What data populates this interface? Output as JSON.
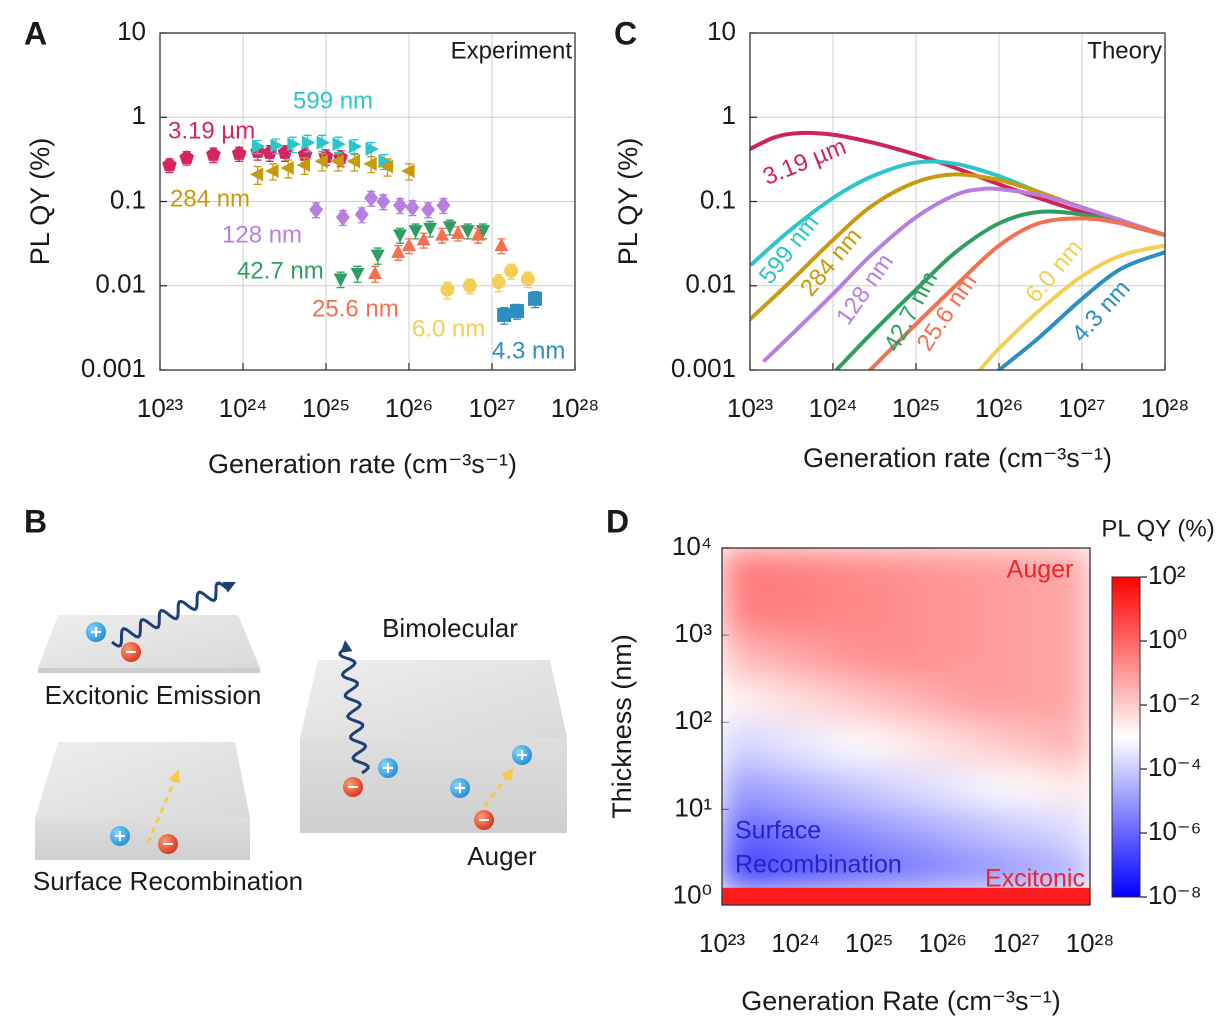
{
  "chart_data": [
    {
      "type": "scatter",
      "panel": "A",
      "annotation": "Experiment",
      "y_label": "PL QY (%)",
      "x_label": "Generation rate (cm⁻³s⁻¹)",
      "log_x": true,
      "log_y": true,
      "grid": true,
      "xlim": [
        1e+23,
        1e+28
      ],
      "ylim": [
        0.001,
        10
      ],
      "xticks": [
        {
          "value": 1e+23,
          "label": "10²³"
        },
        {
          "value": 1e+24,
          "label": "10²⁴"
        },
        {
          "value": 1e+25,
          "label": "10²⁵"
        },
        {
          "value": 1e+26,
          "label": "10²⁶"
        },
        {
          "value": 1e+27,
          "label": "10²⁷"
        },
        {
          "value": 1e+28,
          "label": "10²⁸"
        }
      ],
      "yticks": [
        0.001,
        0.01,
        0.1,
        1,
        10
      ],
      "series": [
        {
          "name": "3.19 µm",
          "color": "#d6245e",
          "marker": "pentagon",
          "x": [
            1.3e+23,
            2.1e+23,
            4.4e+23,
            9e+23,
            1.5e+24,
            2.1e+24,
            3.2e+24,
            5.6e+24,
            1e+25,
            1.5e+25
          ],
          "values": [
            0.27,
            0.33,
            0.36,
            0.37,
            0.39,
            0.38,
            0.38,
            0.36,
            0.34,
            0.33
          ],
          "errors": [
            0.05,
            0.06,
            0.07,
            0.07,
            0.08,
            0.08,
            0.08,
            0.07,
            0.07,
            0.07
          ]
        },
        {
          "name": "599 nm",
          "color": "#2cc5c9",
          "marker": "triangle-right",
          "x": [
            1.5e+24,
            2.5e+24,
            4e+24,
            6e+24,
            9e+24,
            1.4e+25,
            2.2e+25,
            3.5e+25,
            5e+25
          ],
          "values": [
            0.45,
            0.46,
            0.48,
            0.5,
            0.5,
            0.48,
            0.45,
            0.42,
            0.3
          ],
          "errors": [
            0.08,
            0.09,
            0.1,
            0.11,
            0.11,
            0.1,
            0.09,
            0.08,
            0.06
          ]
        },
        {
          "name": "284 nm",
          "color": "#c99a0e",
          "marker": "triangle-left",
          "x": [
            1.5e+24,
            2.3e+24,
            3.5e+24,
            5.5e+24,
            9e+24,
            1.4e+25,
            2.2e+25,
            3.5e+25,
            5.5e+25,
            1e+26
          ],
          "values": [
            0.21,
            0.23,
            0.25,
            0.27,
            0.3,
            0.3,
            0.3,
            0.28,
            0.26,
            0.23
          ],
          "errors": [
            0.05,
            0.05,
            0.06,
            0.06,
            0.07,
            0.07,
            0.07,
            0.06,
            0.06,
            0.05
          ]
        },
        {
          "name": "128 nm",
          "color": "#b77fe0",
          "marker": "diamond",
          "x": [
            7.6e+24,
            1.6e+25,
            2.7e+25,
            3.5e+25,
            4.9e+25,
            7.8e+25,
            1.1e+26,
            1.7e+26,
            2.6e+26
          ],
          "values": [
            0.08,
            0.065,
            0.07,
            0.11,
            0.1,
            0.09,
            0.085,
            0.08,
            0.09
          ],
          "errors": [
            0.016,
            0.013,
            0.014,
            0.022,
            0.02,
            0.018,
            0.017,
            0.016,
            0.018
          ]
        },
        {
          "name": "42.7 nm",
          "color": "#2f9e63",
          "marker": "triangle-down",
          "x": [
            1.5e+25,
            2.4e+25,
            4.2e+25,
            7.8e+25,
            1.2e+26,
            1.8e+26,
            3.1e+26,
            5.1e+26,
            7.8e+26
          ],
          "values": [
            0.012,
            0.014,
            0.023,
            0.04,
            0.045,
            0.048,
            0.05,
            0.045,
            0.045
          ],
          "errors": [
            0.0025,
            0.003,
            0.005,
            0.008,
            0.009,
            0.01,
            0.01,
            0.009,
            0.009
          ]
        },
        {
          "name": "25.6 nm",
          "color": "#f4704f",
          "marker": "triangle-up",
          "x": [
            3.9e+25,
            7.4e+25,
            1e+26,
            1.5e+26,
            2.5e+26,
            3.9e+26,
            6.8e+26,
            1.3e+27
          ],
          "values": [
            0.014,
            0.025,
            0.03,
            0.035,
            0.04,
            0.042,
            0.04,
            0.03
          ],
          "errors": [
            0.003,
            0.005,
            0.006,
            0.007,
            0.008,
            0.008,
            0.008,
            0.006
          ]
        },
        {
          "name": "6.0 nm",
          "color": "#f4cf55",
          "marker": "circle",
          "x": [
            2.9e+26,
            5.4e+26,
            1.2e+27,
            1.7e+27,
            2.7e+27
          ],
          "values": [
            0.009,
            0.01,
            0.011,
            0.015,
            0.012
          ],
          "errors": [
            0.002,
            0.002,
            0.0025,
            0.003,
            0.0025
          ]
        },
        {
          "name": "4.3 nm",
          "color": "#2b8fc2",
          "marker": "square",
          "x": [
            1.4e+27,
            2e+27,
            3.3e+27
          ],
          "values": [
            0.0045,
            0.005,
            0.007
          ],
          "errors": [
            0.001,
            0.001,
            0.0015
          ]
        }
      ]
    },
    {
      "type": "line",
      "panel": "C",
      "annotation": "Theory",
      "y_label": "PL QY (%)",
      "x_label": "Generation rate (cm⁻³s⁻¹)",
      "log_x": true,
      "log_y": true,
      "grid": true,
      "xlim": [
        1e+23,
        1e+28
      ],
      "ylim": [
        0.001,
        10
      ],
      "xticks": [
        {
          "value": 1e+23,
          "label": "10²³"
        },
        {
          "value": 1e+24,
          "label": "10²⁴"
        },
        {
          "value": 1e+25,
          "label": "10²⁵"
        },
        {
          "value": 1e+26,
          "label": "10²⁶"
        },
        {
          "value": 1e+27,
          "label": "10²⁷"
        },
        {
          "value": 1e+28,
          "label": "10²⁸"
        }
      ],
      "yticks": [
        0.001,
        0.01,
        0.1,
        1,
        10
      ],
      "series": [
        {
          "name": "3.19 µm",
          "color": "#d1235a",
          "x": [
            1e+23,
            2e+23,
            4e+23,
            1e+24,
            3e+24,
            1e+25,
            3e+25,
            1e+26,
            3e+26,
            1e+27,
            3e+27,
            1e+28
          ],
          "values": [
            0.42,
            0.58,
            0.65,
            0.62,
            0.5,
            0.36,
            0.25,
            0.16,
            0.11,
            0.075,
            0.055,
            0.04
          ]
        },
        {
          "name": "599 nm",
          "color": "#2cc5c9",
          "x": [
            1.05e+23,
            3e+23,
            1e+24,
            3e+24,
            1e+25,
            3e+25,
            1e+26,
            3e+26,
            1e+27,
            1e+28
          ],
          "values": [
            0.018,
            0.045,
            0.11,
            0.2,
            0.29,
            0.28,
            0.2,
            0.13,
            0.085,
            0.04
          ]
        },
        {
          "name": "284 nm",
          "color": "#c99a0e",
          "x": [
            1e+23,
            3e+23,
            1e+24,
            3e+24,
            1e+25,
            3e+25,
            1e+26,
            3e+26,
            1e+27,
            1e+28
          ],
          "values": [
            0.004,
            0.011,
            0.035,
            0.09,
            0.17,
            0.21,
            0.18,
            0.13,
            0.085,
            0.04
          ]
        },
        {
          "name": "128 nm",
          "color": "#b77fe0",
          "x": [
            1.5e+23,
            3e+23,
            1e+24,
            3e+24,
            1e+25,
            3e+25,
            6e+25,
            1e+26,
            3e+26,
            1e+27,
            1e+28
          ],
          "values": [
            0.0013,
            0.0025,
            0.008,
            0.024,
            0.065,
            0.12,
            0.14,
            0.14,
            0.12,
            0.085,
            0.04
          ]
        },
        {
          "name": "42.7 nm",
          "color": "#2f9e63",
          "x": [
            1.1e+24,
            3e+24,
            1e+25,
            3e+25,
            1e+26,
            3e+26,
            1e+27,
            3e+27,
            1e+28
          ],
          "values": [
            0.001,
            0.0028,
            0.009,
            0.025,
            0.055,
            0.075,
            0.07,
            0.055,
            0.04
          ]
        },
        {
          "name": "25.6 nm",
          "color": "#f4704f",
          "x": [
            2.8e+24,
            1e+25,
            3e+25,
            1e+26,
            3e+26,
            1e+27,
            3e+27,
            1e+28
          ],
          "values": [
            0.001,
            0.0035,
            0.01,
            0.03,
            0.055,
            0.063,
            0.055,
            0.04
          ]
        },
        {
          "name": "6.0 nm",
          "color": "#f4cf55",
          "x": [
            5.9e+25,
            1e+26,
            3e+26,
            1e+27,
            3e+27,
            1e+28
          ],
          "values": [
            0.001,
            0.0018,
            0.005,
            0.013,
            0.023,
            0.03
          ]
        },
        {
          "name": "4.3 nm",
          "color": "#2b8fc2",
          "x": [
            1e+26,
            3e+26,
            1e+27,
            3e+27,
            1e+28
          ],
          "values": [
            0.001,
            0.0024,
            0.007,
            0.016,
            0.025
          ]
        }
      ]
    },
    {
      "type": "heatmap",
      "panel": "D",
      "y_label": "Thickness (nm)",
      "x_label": "Generation Rate (cm⁻³s⁻¹)",
      "log_x": true,
      "log_y": true,
      "grid": false,
      "xlim": [
        1e+23,
        1e+28
      ],
      "ylim": [
        0.8,
        10000
      ],
      "xticks": [
        {
          "value": 1e+23,
          "label": "10²³"
        },
        {
          "value": 1e+24,
          "label": "10²⁴"
        },
        {
          "value": 1e+25,
          "label": "10²⁵"
        },
        {
          "value": 1e+26,
          "label": "10²⁶"
        },
        {
          "value": 1e+27,
          "label": "10²⁷"
        },
        {
          "value": 1e+28,
          "label": "10²⁸"
        }
      ],
      "yticks": [
        {
          "value": 1,
          "label": "10⁰"
        },
        {
          "value": 10,
          "label": "10¹"
        },
        {
          "value": 100,
          "label": "10²"
        },
        {
          "value": 1000,
          "label": "10³"
        },
        {
          "value": 10000,
          "label": "10⁴"
        }
      ],
      "x_edges": [
        1e+23,
        3.16e+23,
        1e+24,
        3.16e+24,
        1e+25,
        3.16e+25,
        1e+26,
        3.16e+26,
        1e+27,
        3.16e+27,
        1e+28
      ],
      "y_edges": [
        0.8,
        1.26,
        3.16,
        10,
        31.6,
        100,
        316,
        1000,
        3162,
        10000
      ],
      "values": [
        [
          30,
          30,
          30,
          30,
          30,
          30,
          30,
          30,
          30,
          30
        ],
        [
          9e-08,
          1.7e-07,
          3e-07,
          5.5e-07,
          1e-06,
          1.9e-06,
          3.5e-06,
          6.3e-06,
          1.1e-05,
          2.1e-05
        ],
        [
          8.7e-07,
          1.6e-06,
          3e-06,
          5.4e-06,
          1e-05,
          1.8e-05,
          3.4e-05,
          6.2e-05,
          0.00011,
          0.00021
        ],
        [
          1.1e-05,
          2e-05,
          3.7e-05,
          6.8e-05,
          0.00013,
          0.00023,
          0.00043,
          0.00078,
          0.0014,
          0.0026
        ],
        [
          0.00014,
          0.00026,
          0.00047,
          0.00085,
          0.0016,
          0.0029,
          0.0054,
          0.0098,
          0.018,
          0.033
        ],
        [
          0.0017,
          0.0032,
          0.0059,
          0.011,
          0.02,
          0.036,
          0.068,
          0.089,
          0.071,
          0.056
        ],
        [
          0.022,
          0.041,
          0.074,
          0.13,
          0.18,
          0.14,
          0.11,
          0.089,
          0.071,
          0.056
        ],
        [
          0.28,
          0.35,
          0.28,
          0.22,
          0.18,
          0.14,
          0.11,
          0.089,
          0.071,
          0.056
        ],
        [
          0.45,
          0.35,
          0.28,
          0.22,
          0.18,
          0.14,
          0.11,
          0.089,
          0.071,
          0.056
        ]
      ],
      "colorbar": {
        "title": "PL QY (%)",
        "log": true,
        "lim": [
          1e-08,
          100
        ],
        "colors": [
          "#0000ff",
          "#ffffff",
          "#ff0000"
        ],
        "ticks": [
          {
            "value": 100,
            "label": "10²"
          },
          {
            "value": 1,
            "label": "10⁰"
          },
          {
            "value": 0.01,
            "label": "10⁻²"
          },
          {
            "value": 0.0001,
            "label": "10⁻⁴"
          },
          {
            "value": 1e-06,
            "label": "10⁻⁶"
          },
          {
            "value": 1e-08,
            "label": "10⁻⁸"
          }
        ]
      },
      "annotations": [
        {
          "text": "Auger",
          "color": "#e8282c"
        },
        {
          "text": "Surface",
          "color": "#2424c8"
        },
        {
          "text": "Recombination",
          "color": "#2424c8"
        },
        {
          "text": "Excitonic",
          "color": "#e8282c"
        }
      ]
    }
  ],
  "diagram": {
    "panel": "B",
    "excitonic": "Excitonic Emission",
    "surface": "Surface Recombination",
    "bimolecular": "Bimolecular",
    "auger": "Auger"
  }
}
